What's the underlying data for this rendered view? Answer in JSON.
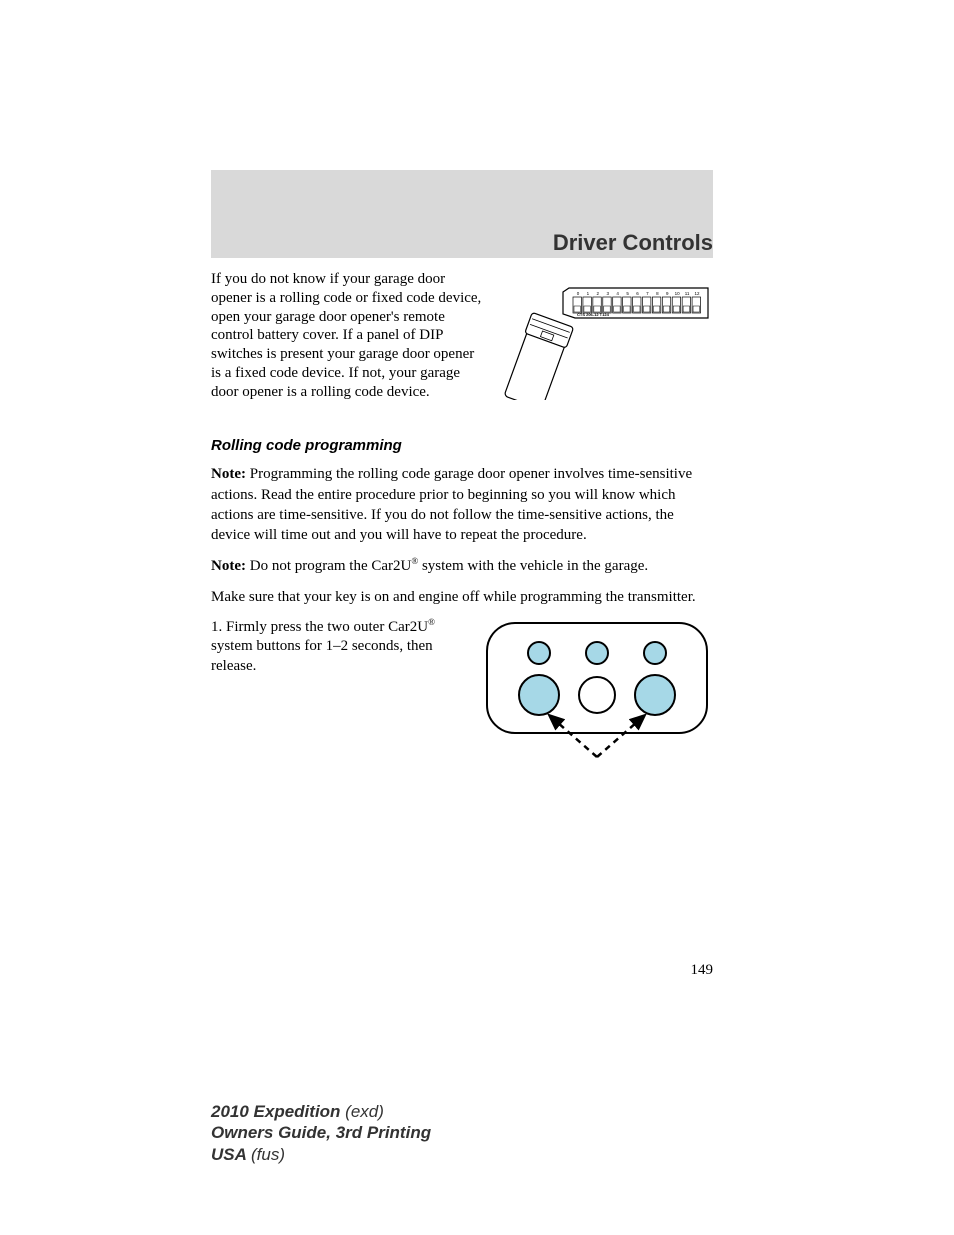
{
  "section_title": "Driver Controls",
  "intro_para": "If you do not know if your garage door opener is a rolling code or fixed code device, open your garage door opener's remote control battery cover. If a panel of DIP switches is present your garage door opener is a fixed code device. If not, your garage door opener is a rolling code device.",
  "subheading": "Rolling code programming",
  "note1_label": "Note:",
  "note1_text": " Programming the rolling code garage door opener involves time-sensitive actions. Read the entire procedure prior to beginning so you will know which actions are time-sensitive. If you do not follow the time-sensitive actions, the device will time out and you will have to repeat the procedure.",
  "note2_label": "Note:",
  "note2_text_a": " Do not program the Car2U",
  "note2_text_b": " system with the vehicle in the garage.",
  "para_keyon": "Make sure that your key is on and engine off while programming the transmitter.",
  "step1_a": "1. Firmly press the two outer Car2U",
  "step1_b": " system buttons for 1–2 seconds, then release.",
  "registered": "®",
  "dip": {
    "numbers": [
      "0",
      "1",
      "2",
      "3",
      "4",
      "5",
      "6",
      "7",
      "8",
      "9",
      "10",
      "11",
      "12"
    ],
    "label": "CTS  206-12  T124"
  },
  "car2u": {
    "button_fill": "#a6d8e7",
    "outline": "#000000",
    "bg": "#ffffff"
  },
  "pagenum": "149",
  "footer": {
    "l1a": "2010 Expedition ",
    "l1b": "(exd)",
    "l2": "Owners Guide, 3rd Printing",
    "l3a": "USA ",
    "l3b": "(fus)"
  }
}
